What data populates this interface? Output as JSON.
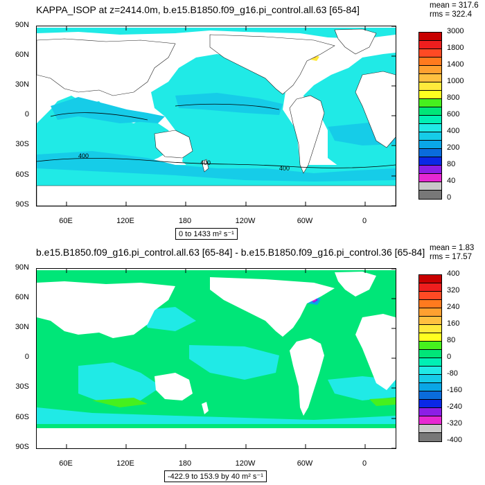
{
  "panels": [
    {
      "title": "KAPPA_ISOP at z=2414.0m, b.e15.B1850.f09_g16.pi_control.all.63 [65-84]",
      "stats": [
        "mean = 317.6",
        "rms = 322.4"
      ],
      "range_text": "0 to 1433 m² s⁻¹",
      "colorbar_labels": [
        "3000",
        "1800",
        "1400",
        "1000",
        "800",
        "600",
        "400",
        "200",
        "80",
        "40",
        "0"
      ],
      "colorbar_colors": [
        "#c80000",
        "#ee1e1e",
        "#ff4a24",
        "#ff7a1e",
        "#ffa030",
        "#ffc040",
        "#ffea3c",
        "#ffff20",
        "#46f01e",
        "#00e678",
        "#00f0b4",
        "#20eae6",
        "#16cce8",
        "#0aa6e6",
        "#0a6cdc",
        "#0a28e6",
        "#8c1ee6",
        "#e628d2",
        "#c8c8c8",
        "#787878"
      ],
      "contour_labels": [
        "400",
        "400",
        "400"
      ]
    },
    {
      "title": "b.e15.B1850.f09_g16.pi_control.all.63 [65-84] - b.e15.B1850.f09_g16.pi_control.36 [65-84]",
      "stats": [
        "mean = 1.83",
        "rms = 17.57"
      ],
      "range_text": "-422.9 to 153.9 by 40 m² s⁻¹",
      "colorbar_labels": [
        "400",
        "320",
        "240",
        "160",
        "80",
        "0",
        "-80",
        "-160",
        "-240",
        "-320",
        "-400"
      ],
      "colorbar_colors": [
        "#c80000",
        "#ee1e1e",
        "#ff4a24",
        "#ff7a1e",
        "#ffa030",
        "#ffc040",
        "#ffea3c",
        "#ffff20",
        "#46f01e",
        "#00e678",
        "#00f0b4",
        "#20eae6",
        "#16cce8",
        "#0aa6e6",
        "#0a6cdc",
        "#0a28e6",
        "#8c1ee6",
        "#e628d2",
        "#c8c8c8",
        "#787878"
      ]
    }
  ],
  "axes": {
    "y_ticks": [
      "90N",
      "60N",
      "30N",
      "0",
      "30S",
      "60S",
      "90S"
    ],
    "x_ticks": [
      "60E",
      "120E",
      "180",
      "120W",
      "60W",
      "0"
    ]
  },
  "chart_data": [
    {
      "type": "heatmap",
      "title": "KAPPA_ISOP at z=2414.0m, b.e15.B1850.f09_g16.pi_control.all.63 [65-84]",
      "y_ticks": [
        "90N",
        "60N",
        "30N",
        "0",
        "30S",
        "60S",
        "90S"
      ],
      "x_ticks": [
        "60E",
        "120E",
        "180",
        "120W",
        "60W",
        "0"
      ],
      "y_range": [
        -90,
        90
      ],
      "x_range": [
        30,
        390
      ],
      "levels": [
        0,
        40,
        80,
        200,
        400,
        600,
        800,
        1000,
        1400,
        1800,
        3000
      ],
      "data_range": [
        0,
        1433
      ],
      "mean": 317.6,
      "rms": 322.4,
      "dominant_value_range": [
        400,
        600
      ],
      "contour_value": 400,
      "max_region": "Labrador Sea / southern Greenland"
    },
    {
      "type": "heatmap",
      "title": "b.e15.B1850.f09_g16.pi_control.all.63 [65-84] - b.e15.B1850.f09_g16.pi_control.36 [65-84]",
      "y_ticks": [
        "90N",
        "60N",
        "30N",
        "0",
        "30S",
        "60S",
        "90S"
      ],
      "x_ticks": [
        "60E",
        "120E",
        "180",
        "120W",
        "60W",
        "0"
      ],
      "y_range": [
        -90,
        90
      ],
      "x_range": [
        30,
        390
      ],
      "levels": [
        -400,
        -320,
        -240,
        -160,
        -80,
        0,
        80,
        160,
        240,
        320,
        400
      ],
      "data_range": [
        -422.9,
        153.9
      ],
      "contour_interval": 40,
      "mean": 1.83,
      "rms": 17.57,
      "dominant_value_range": [
        0,
        80
      ],
      "min_region": "Labrador Sea"
    }
  ]
}
